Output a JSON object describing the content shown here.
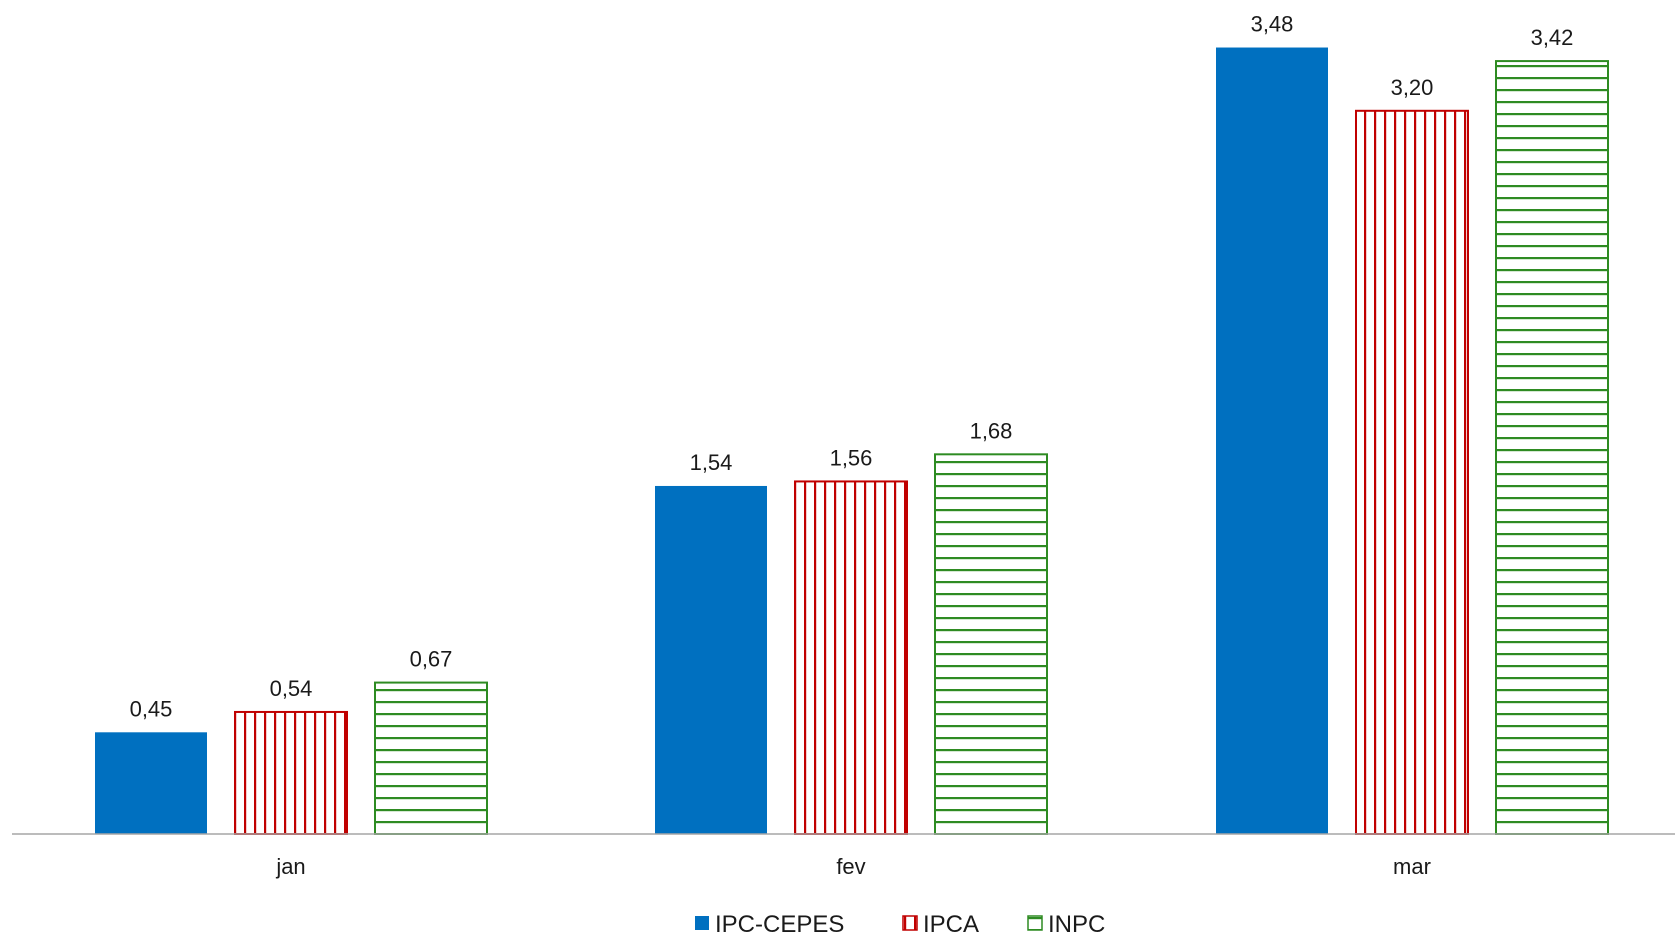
{
  "chart_data": {
    "type": "bar",
    "categories": [
      "jan",
      "fev",
      "mar"
    ],
    "series": [
      {
        "name": "IPC-CEPES",
        "values": [
          0.45,
          1.54,
          3.48
        ],
        "labels": [
          "0,45",
          "1,54",
          "3,48"
        ],
        "color": "#0070c0",
        "fill": "solid"
      },
      {
        "name": "IPCA",
        "values": [
          0.54,
          1.56,
          3.2
        ],
        "labels": [
          "0,54",
          "1,56",
          "3,20"
        ],
        "color": "#c00000",
        "fill": "vertical-stripes"
      },
      {
        "name": "INPC",
        "values": [
          0.67,
          1.68,
          3.42
        ],
        "labels": [
          "0,67",
          "1,68",
          "3,42"
        ],
        "color": "#2e8b22",
        "fill": "horizontal-stripes"
      }
    ],
    "ylim": [
      0,
      3.6
    ],
    "grid": false,
    "legend_position": "bottom-center"
  }
}
